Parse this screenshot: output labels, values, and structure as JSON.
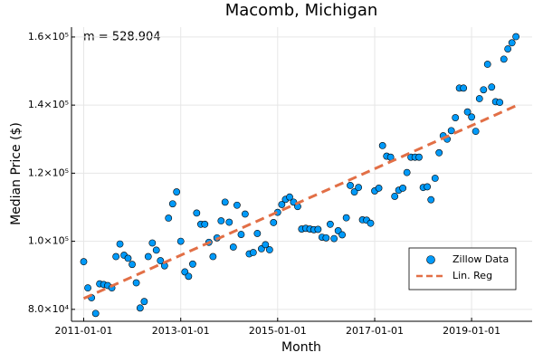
{
  "chart_data": {
    "type": "scatter",
    "title": "Macomb, Michigan",
    "x_label": "Month",
    "y_label": "Median Price ($)",
    "annotation": "m = 528.904",
    "x": [
      "2011-01-01",
      "2011-02-01",
      "2011-03-01",
      "2011-04-01",
      "2011-05-01",
      "2011-06-01",
      "2011-07-01",
      "2011-08-01",
      "2011-09-01",
      "2011-10-01",
      "2011-11-01",
      "2011-12-01",
      "2012-01-01",
      "2012-02-01",
      "2012-03-01",
      "2012-04-01",
      "2012-05-01",
      "2012-06-01",
      "2012-07-01",
      "2012-08-01",
      "2012-09-01",
      "2012-10-01",
      "2012-11-01",
      "2012-12-01",
      "2013-01-01",
      "2013-02-01",
      "2013-03-01",
      "2013-04-01",
      "2013-05-01",
      "2013-06-01",
      "2013-07-01",
      "2013-08-01",
      "2013-09-01",
      "2013-10-01",
      "2013-11-01",
      "2013-12-01",
      "2014-01-01",
      "2014-02-01",
      "2014-03-01",
      "2014-04-01",
      "2014-05-01",
      "2014-06-01",
      "2014-07-01",
      "2014-08-01",
      "2014-09-01",
      "2014-10-01",
      "2014-11-01",
      "2014-12-01",
      "2015-01-01",
      "2015-02-01",
      "2015-03-01",
      "2015-04-01",
      "2015-05-01",
      "2015-06-01",
      "2015-07-01",
      "2015-08-01",
      "2015-09-01",
      "2015-10-01",
      "2015-11-01",
      "2015-12-01",
      "2016-01-01",
      "2016-02-01",
      "2016-03-01",
      "2016-04-01",
      "2016-05-01",
      "2016-06-01",
      "2016-07-01",
      "2016-08-01",
      "2016-09-01",
      "2016-10-01",
      "2016-11-01",
      "2016-12-01",
      "2017-01-01",
      "2017-02-01",
      "2017-03-01",
      "2017-04-01",
      "2017-05-01",
      "2017-06-01",
      "2017-07-01",
      "2017-08-01",
      "2017-09-01",
      "2017-10-01",
      "2017-11-01",
      "2017-12-01",
      "2018-01-01",
      "2018-02-01",
      "2018-03-01",
      "2018-04-01",
      "2018-05-01",
      "2018-06-01",
      "2018-07-01",
      "2018-08-01",
      "2018-09-01",
      "2018-10-01",
      "2018-11-01",
      "2018-12-01",
      "2019-01-01",
      "2019-02-01",
      "2019-03-01",
      "2019-04-01",
      "2019-05-01",
      "2019-06-01",
      "2019-07-01",
      "2019-08-01",
      "2019-09-01",
      "2019-10-01",
      "2019-11-01",
      "2019-12-01"
    ],
    "series": [
      {
        "name": "Zillow Data",
        "kind": "scatter",
        "color": "#009af9",
        "values": [
          94000,
          86300,
          83400,
          78800,
          87500,
          87300,
          87000,
          86300,
          95500,
          99200,
          95900,
          95000,
          93200,
          87800,
          80400,
          82300,
          95500,
          99500,
          97400,
          94300,
          92800,
          106800,
          111000,
          114500,
          100000,
          91000,
          89700,
          93300,
          108300,
          105000,
          105000,
          99700,
          95500,
          101000,
          106000,
          111500,
          105600,
          98300,
          110600,
          102000,
          108000,
          96300,
          96700,
          102300,
          97800,
          99000,
          97500,
          105500,
          108500,
          110800,
          112300,
          113000,
          111500,
          110200,
          103600,
          103800,
          103600,
          103400,
          103500,
          101200,
          101000,
          105000,
          100800,
          103100,
          101900,
          106900,
          116400,
          114500,
          115800,
          106300,
          106200,
          105300,
          114800,
          115600,
          128100,
          125000,
          124700,
          113200,
          115000,
          115600,
          120200,
          124700,
          124700,
          124700,
          115800,
          116000,
          112200,
          118500,
          126000,
          131000,
          130000,
          132500,
          136300,
          145000,
          145000,
          138000,
          136500,
          132300,
          141900,
          144500,
          152000,
          145300,
          141000,
          140800,
          153500,
          156500,
          158300,
          160100
        ]
      },
      {
        "name": "Lin. Reg",
        "kind": "line",
        "color": "#e26f46",
        "x": [
          "2011-01-01",
          "2019-12-01"
        ],
        "values": [
          83200,
          139800
        ]
      }
    ],
    "xlim": [
      "2010-10-01",
      "2020-04-01"
    ],
    "xticks": [
      "2011-01-01",
      "2013-01-01",
      "2015-01-01",
      "2017-01-01",
      "2019-01-01"
    ],
    "ylim": [
      76500,
      162900
    ],
    "yticks": [
      {
        "value": 80000,
        "label": "8.0×10⁴"
      },
      {
        "value": 100000,
        "label": "1.0×10⁵"
      },
      {
        "value": 120000,
        "label": "1.2×10⁵"
      },
      {
        "value": 140000,
        "label": "1.4×10⁵"
      },
      {
        "value": 160000,
        "label": "1.6×10⁵"
      }
    ],
    "grid": true,
    "legend": "bottom-right"
  }
}
